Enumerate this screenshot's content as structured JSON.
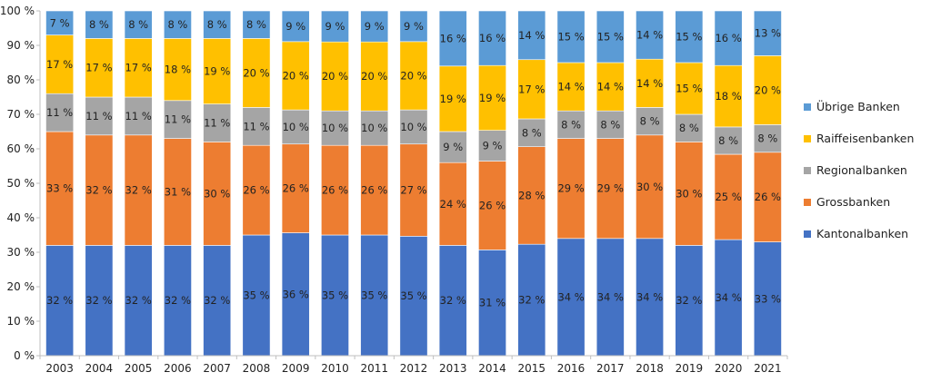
{
  "chart_data": {
    "type": "bar",
    "stacked": true,
    "normalized": true,
    "title": "",
    "xlabel": "",
    "ylabel": "",
    "ylim": [
      0,
      100
    ],
    "yticks": [
      "0 %",
      "10 %",
      "20 %",
      "30 %",
      "40 %",
      "50 %",
      "60 %",
      "70 %",
      "80 %",
      "90 %",
      "100 %"
    ],
    "grid": false,
    "legend_position": "right",
    "categories": [
      "2003",
      "2004",
      "2005",
      "2006",
      "2007",
      "2008",
      "2009",
      "2010",
      "2011",
      "2012",
      "2013",
      "2014",
      "2015",
      "2016",
      "2017",
      "2018",
      "2019",
      "2020",
      "2021"
    ],
    "series": [
      {
        "name": "Kantonalbanken",
        "color": "#4472C4",
        "values": [
          32,
          32,
          32,
          32,
          32,
          35,
          36,
          35,
          35,
          35,
          32,
          31,
          32,
          34,
          34,
          34,
          32,
          34,
          33
        ],
        "labels": [
          "32 %",
          "32 %",
          "32 %",
          "32 %",
          "32 %",
          "35 %",
          "36 %",
          "35 %",
          "35 %",
          "35 %",
          "32 %",
          "31 %",
          "32 %",
          "34 %",
          "34 %",
          "34 %",
          "32 %",
          "34 %",
          "33 %"
        ]
      },
      {
        "name": "Grossbanken",
        "color": "#ED7D31",
        "values": [
          33,
          32,
          32,
          31,
          30,
          26,
          26,
          26,
          26,
          27,
          24,
          26,
          28,
          29,
          29,
          30,
          30,
          25,
          26
        ],
        "labels": [
          "33 %",
          "32 %",
          "32 %",
          "31 %",
          "30 %",
          "26 %",
          "26 %",
          "26 %",
          "26 %",
          "27 %",
          "24 %",
          "26 %",
          "28 %",
          "29 %",
          "29 %",
          "30 %",
          "30 %",
          "25 %",
          "26 %"
        ]
      },
      {
        "name": "Regionalbanken",
        "color": "#A5A5A5",
        "values": [
          11,
          11,
          11,
          11,
          11,
          11,
          10,
          10,
          10,
          10,
          9,
          9,
          8,
          8,
          8,
          8,
          8,
          8,
          8
        ],
        "labels": [
          "11 %",
          "11 %",
          "11 %",
          "11 %",
          "11 %",
          "11 %",
          "10 %",
          "10 %",
          "10 %",
          "10 %",
          "9 %",
          "9 %",
          "8 %",
          "8 %",
          "8 %",
          "8 %",
          "8 %",
          "8 %",
          "8 %"
        ]
      },
      {
        "name": "Raiffeisenbanken",
        "color": "#FFC000",
        "values": [
          17,
          17,
          17,
          18,
          19,
          20,
          20,
          20,
          20,
          20,
          19,
          19,
          17,
          14,
          14,
          14,
          15,
          18,
          20
        ],
        "labels": [
          "17 %",
          "17 %",
          "17 %",
          "18 %",
          "19 %",
          "20 %",
          "20 %",
          "20 %",
          "20 %",
          "20 %",
          "19 %",
          "19 %",
          "17 %",
          "14 %",
          "14 %",
          "14 %",
          "15 %",
          "18 %",
          "20 %"
        ]
      },
      {
        "name": "Übrige Banken",
        "color": "#5B9BD5",
        "values": [
          7,
          8,
          8,
          8,
          8,
          8,
          9,
          9,
          9,
          9,
          16,
          16,
          14,
          15,
          15,
          14,
          15,
          16,
          13
        ],
        "labels": [
          "7 %",
          "8 %",
          "8 %",
          "8 %",
          "8 %",
          "8 %",
          "9 %",
          "9 %",
          "9 %",
          "9 %",
          "16 %",
          "16 %",
          "14 %",
          "15 %",
          "15 %",
          "14 %",
          "15 %",
          "16 %",
          "13 %"
        ]
      }
    ],
    "legend_order": [
      "Übrige Banken",
      "Raiffeisenbanken",
      "Regionalbanken",
      "Grossbanken",
      "Kantonalbanken"
    ]
  }
}
